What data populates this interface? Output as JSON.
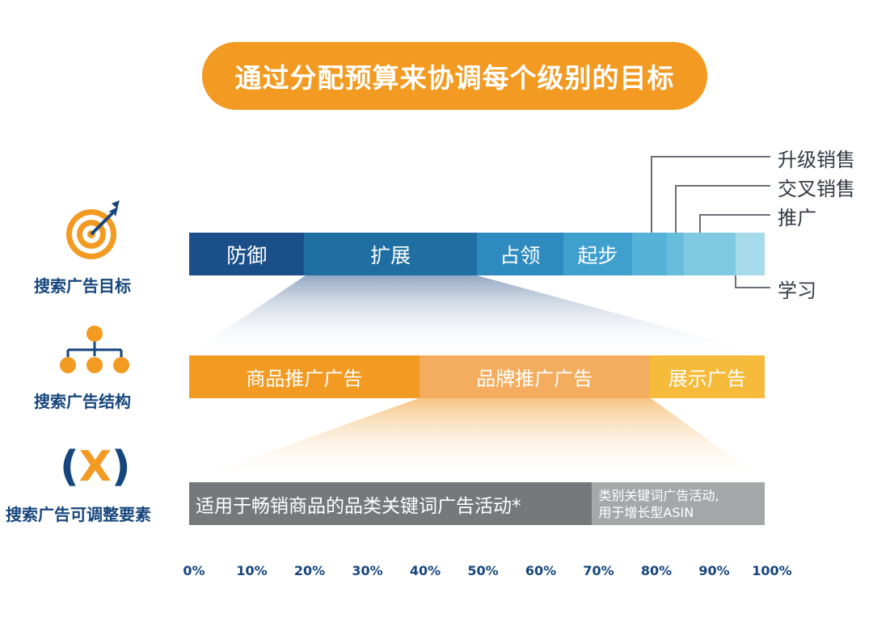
{
  "title": "通过分配预算来协调每个级别的目标",
  "rows": {
    "goals": {
      "label": "搜索广告目标",
      "icon": "target-icon"
    },
    "structure": {
      "label": "搜索广告结构",
      "icon": "hierarchy-icon"
    },
    "adjust": {
      "label": "搜索广告可调整要素",
      "icon": "variable-x-icon",
      "symbol_open": "(",
      "symbol_x": "X",
      "symbol_close": ")"
    }
  },
  "goal_segments": [
    {
      "label": "防御",
      "start": 0,
      "end": 20,
      "color": "#1b4f8a"
    },
    {
      "label": "扩展",
      "start": 20,
      "end": 50,
      "color": "#1f6fa3"
    },
    {
      "label": "占领",
      "start": 50,
      "end": 65,
      "color": "#2f8bbf"
    },
    {
      "label": "起步",
      "start": 65,
      "end": 77,
      "color": "#3f9fcd"
    },
    {
      "label": "",
      "start": 77,
      "end": 83,
      "color": "#56b2d6"
    },
    {
      "label": "",
      "start": 83,
      "end": 86,
      "color": "#68bddc"
    },
    {
      "label": "",
      "start": 86,
      "end": 95,
      "color": "#80c9e2"
    },
    {
      "label": "",
      "start": 95,
      "end": 100,
      "color": "#a7dbeb"
    }
  ],
  "goal_callouts": [
    {
      "label": "升级销售"
    },
    {
      "label": "交叉销售"
    },
    {
      "label": "推广"
    },
    {
      "label": "学习"
    }
  ],
  "structure_segments": [
    {
      "label": "商品推广广告",
      "start": 0,
      "end": 40,
      "color": "#f29a21"
    },
    {
      "label": "品牌推广广告",
      "start": 40,
      "end": 80,
      "color": "#f4ad5f"
    },
    {
      "label": "展示广告",
      "start": 80,
      "end": 100,
      "color": "#f6bb3a"
    }
  ],
  "adjust_segments": [
    {
      "label": "适用于畅销商品的品类关键词广告活动*",
      "start": 0,
      "end": 70,
      "color": "#77787b"
    },
    {
      "line1": "类别关键词广告活动,",
      "line2": "用于增长型ASIN",
      "start": 70,
      "end": 100,
      "color": "#a6a7a9"
    }
  ],
  "axis_ticks": [
    "0%",
    "10%",
    "20%",
    "30%",
    "40%",
    "50%",
    "60%",
    "70%",
    "80%",
    "90%",
    "100%"
  ],
  "colors": {
    "accent": "#f29a21",
    "navy": "#16467d"
  }
}
